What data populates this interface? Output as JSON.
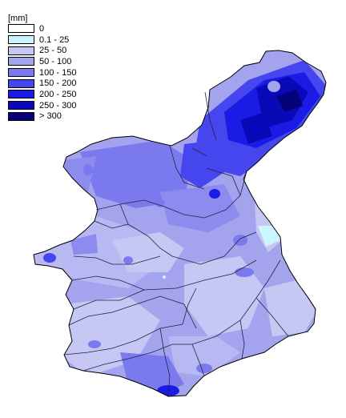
{
  "legend": {
    "unit": "[mm]",
    "classes": [
      {
        "label": "0",
        "color": "#ffffff"
      },
      {
        "label": "0.1 - 25",
        "color": "#ccf6ff"
      },
      {
        "label": "25 - 50",
        "color": "#c7c7f3"
      },
      {
        "label": "50 - 100",
        "color": "#a4a4ee"
      },
      {
        "label": "100 - 150",
        "color": "#7a7aee"
      },
      {
        "label": "150 - 200",
        "color": "#4646ef"
      },
      {
        "label": "200 - 250",
        "color": "#1b1be6"
      },
      {
        "label": "250 - 300",
        "color": "#0909b8"
      },
      {
        "label": "> 300",
        "color": "#040478"
      }
    ]
  },
  "colors": {
    "boundary": "#000000",
    "river": "#222244"
  }
}
